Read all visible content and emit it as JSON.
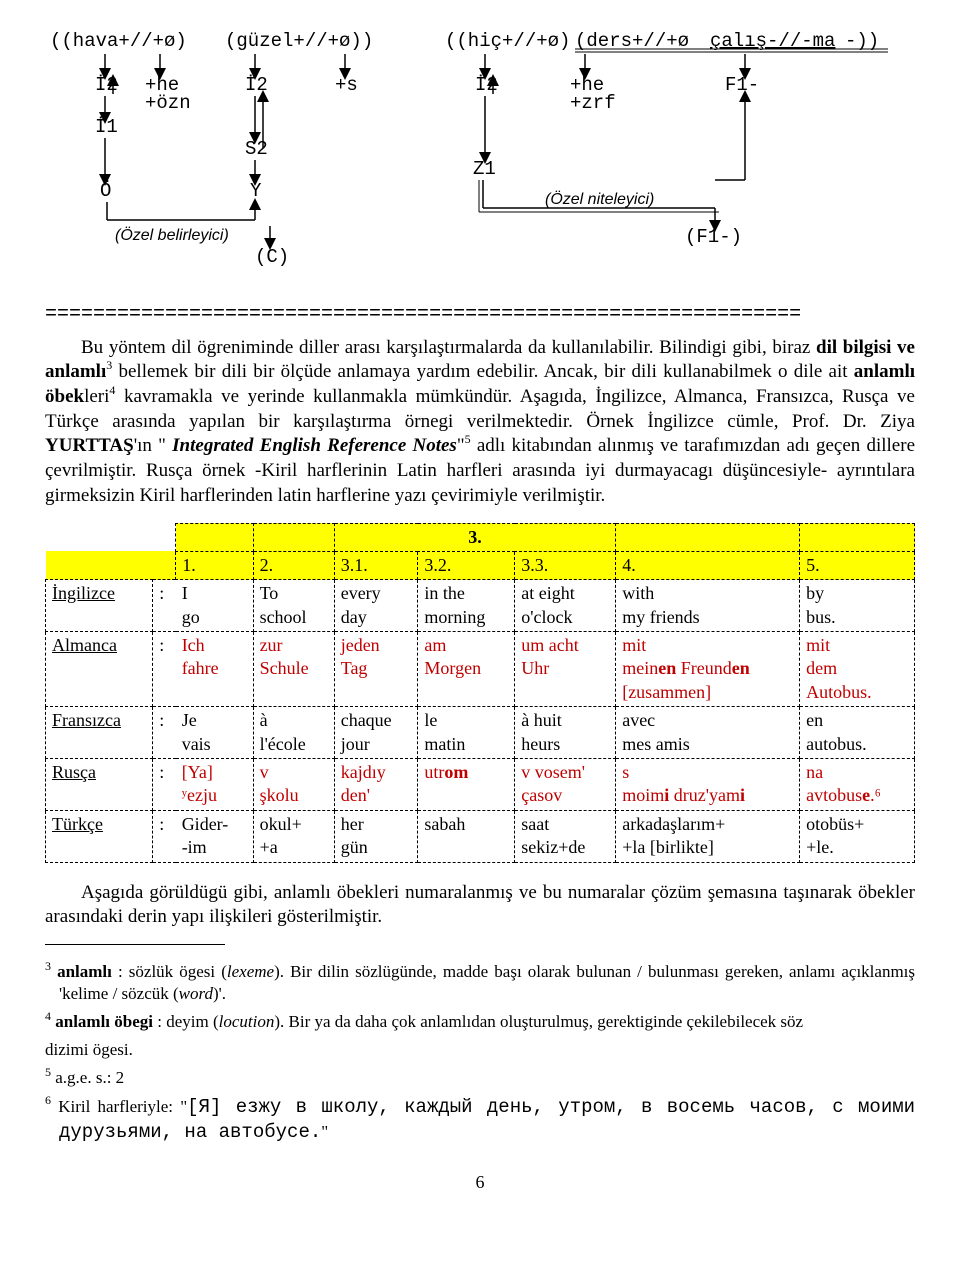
{
  "diagram": {
    "top_labels": [
      "((hava+//+ø)",
      "(güzel+//+ø))",
      "((hiç+//+ø)",
      "(ders+//+ø",
      "çalış-//-ma-))"
    ],
    "row2": [
      "İ2",
      "+he\n+özn",
      "İ2",
      "+s",
      "İ2",
      "+he\n+zrf",
      "F1-"
    ],
    "row3_left": "İ1",
    "row3_mid": "S2",
    "row3_right": "Z1",
    "row4_left": "Ö",
    "row4_mid": "Y",
    "label_left": "(Özel belirleyici)",
    "label_mid_btm": "(C)",
    "label_right_top": "(Özel niteleyici)",
    "label_right": "(F1-)",
    "divider": "==============================================================="
  },
  "para1_parts": {
    "a": "Bu yöntem dil ögreniminde diller arası karşılaştırmalarda da kullanılabilir. Bilindigi gibi, biraz ",
    "b": "dil bilgisi ve anlamlı",
    "sup1": "3",
    "c": " bellemek bir dili bir ölçüde anlamaya yardım edebilir. Ancak, bir dili kullanabilmek o dile ait ",
    "d": "anlamlı öbek",
    "e": "leri",
    "sup2": "4",
    "f": " kavramakla ve yerinde kullanmakla mümkündür. Aşagıda, İngilizce, Almanca, Fransızca, Rusça ve Türkçe arasında yapılan bir karşılaştırma örnegi verilmektedir. Örnek İngilizce cümle, Prof. Dr. Ziya ",
    "g": "YURTTAŞ",
    "h": "'ın \"",
    "i": "Integrated English Reference Notes",
    "j": "\"",
    "sup3": "5",
    "k": " adlı kitabından alınmış ve tarafımızdan adı geçen dillere çevrilmiştir. Rusça örnek -Kiril harflerinin Latin harfleri arasında iyi durmayacagı düşüncesiyle- ayrıntılara girmeksizin Kiril harflerinden latin harflerine yazı çevirimiyle verilmiştir."
  },
  "table": {
    "top3_label": "3.",
    "headers": [
      "1.",
      "2.",
      "3.1.",
      "3.2.",
      "3.3.",
      "4.",
      "5."
    ],
    "rows": [
      {
        "lang": "İngilizce",
        "c": [
          "I\ngo",
          "To\nschool",
          "every\nday",
          "in the\nmorning",
          "at eight\no'clock",
          "with\nmy friends",
          "by\nbus."
        ],
        "cls": ""
      },
      {
        "lang": "Almanca",
        "c": [
          "Ich\nfahre",
          "zur\nSchule",
          "jeden\nTag",
          "am\nMorgen",
          "um acht\nUhr",
          "mit\nmein|en| Freund|en|\n[zusammen]",
          "mit\ndem\nAutobus."
        ],
        "cls": "red"
      },
      {
        "lang": "Fransızca",
        "c": [
          "Je\nvais",
          "à\nl'école",
          "chaque\njour",
          "le\nmatin",
          "à huit\nheurs",
          "avec\nmes amis",
          "en\nautobus."
        ],
        "cls": ""
      },
      {
        "lang": "Rusça",
        "c": [
          "[Ya]\nʸezju",
          "v\nşkolu",
          "kajdıy\nden'",
          "utr|om|",
          "v vosem'\nçasov",
          "s\nmoim|i| druz'yam|i|",
          "na\navtobus|e|.⁶"
        ],
        "cls": "red"
      },
      {
        "lang": "Türkçe",
        "c": [
          "Gider-\n-im",
          "okul+\n+a",
          "her\ngün",
          "sabah",
          "saat\nsekiz+de",
          "arkadaşlarım+\n+la [birlikte]",
          "otobüs+\n+le."
        ],
        "cls": ""
      }
    ]
  },
  "para2": "Aşagıda görüldügü gibi, anlamlı öbekleri numaralanmış ve bu numaralar çözüm şemasına taşınarak öbekler arasındaki derin yapı ilişkileri gösterilmiştir.",
  "footnotes": {
    "f3a": "anlamlı : sözlük ögesi (",
    "f3b": "lexeme",
    "f3c": "). Bir dilin sözlügünde, madde başı olarak bulunan / bulunması gereken, anlamı açıklanmış 'kelime / sözcük (",
    "f3d": "word",
    "f3e": ")'.",
    "f4a": "anlamlı öbegi : deyim (",
    "f4b": "locution",
    "f4c": "). Bir ya da daha çok anlamlıdan oluşturulmuş, gerektiginde çekilebilecek söz dizimi ögesi.",
    "f5": "a.g.e. s.: 2",
    "f6a": "Kiril harfleriyle: \"",
    "f6b": "[Я] езжу в школу, каждый день, утром, в восемь часов, с моими дурузьями, на автобусе.",
    "f6c": "\""
  },
  "pagenum": "6"
}
